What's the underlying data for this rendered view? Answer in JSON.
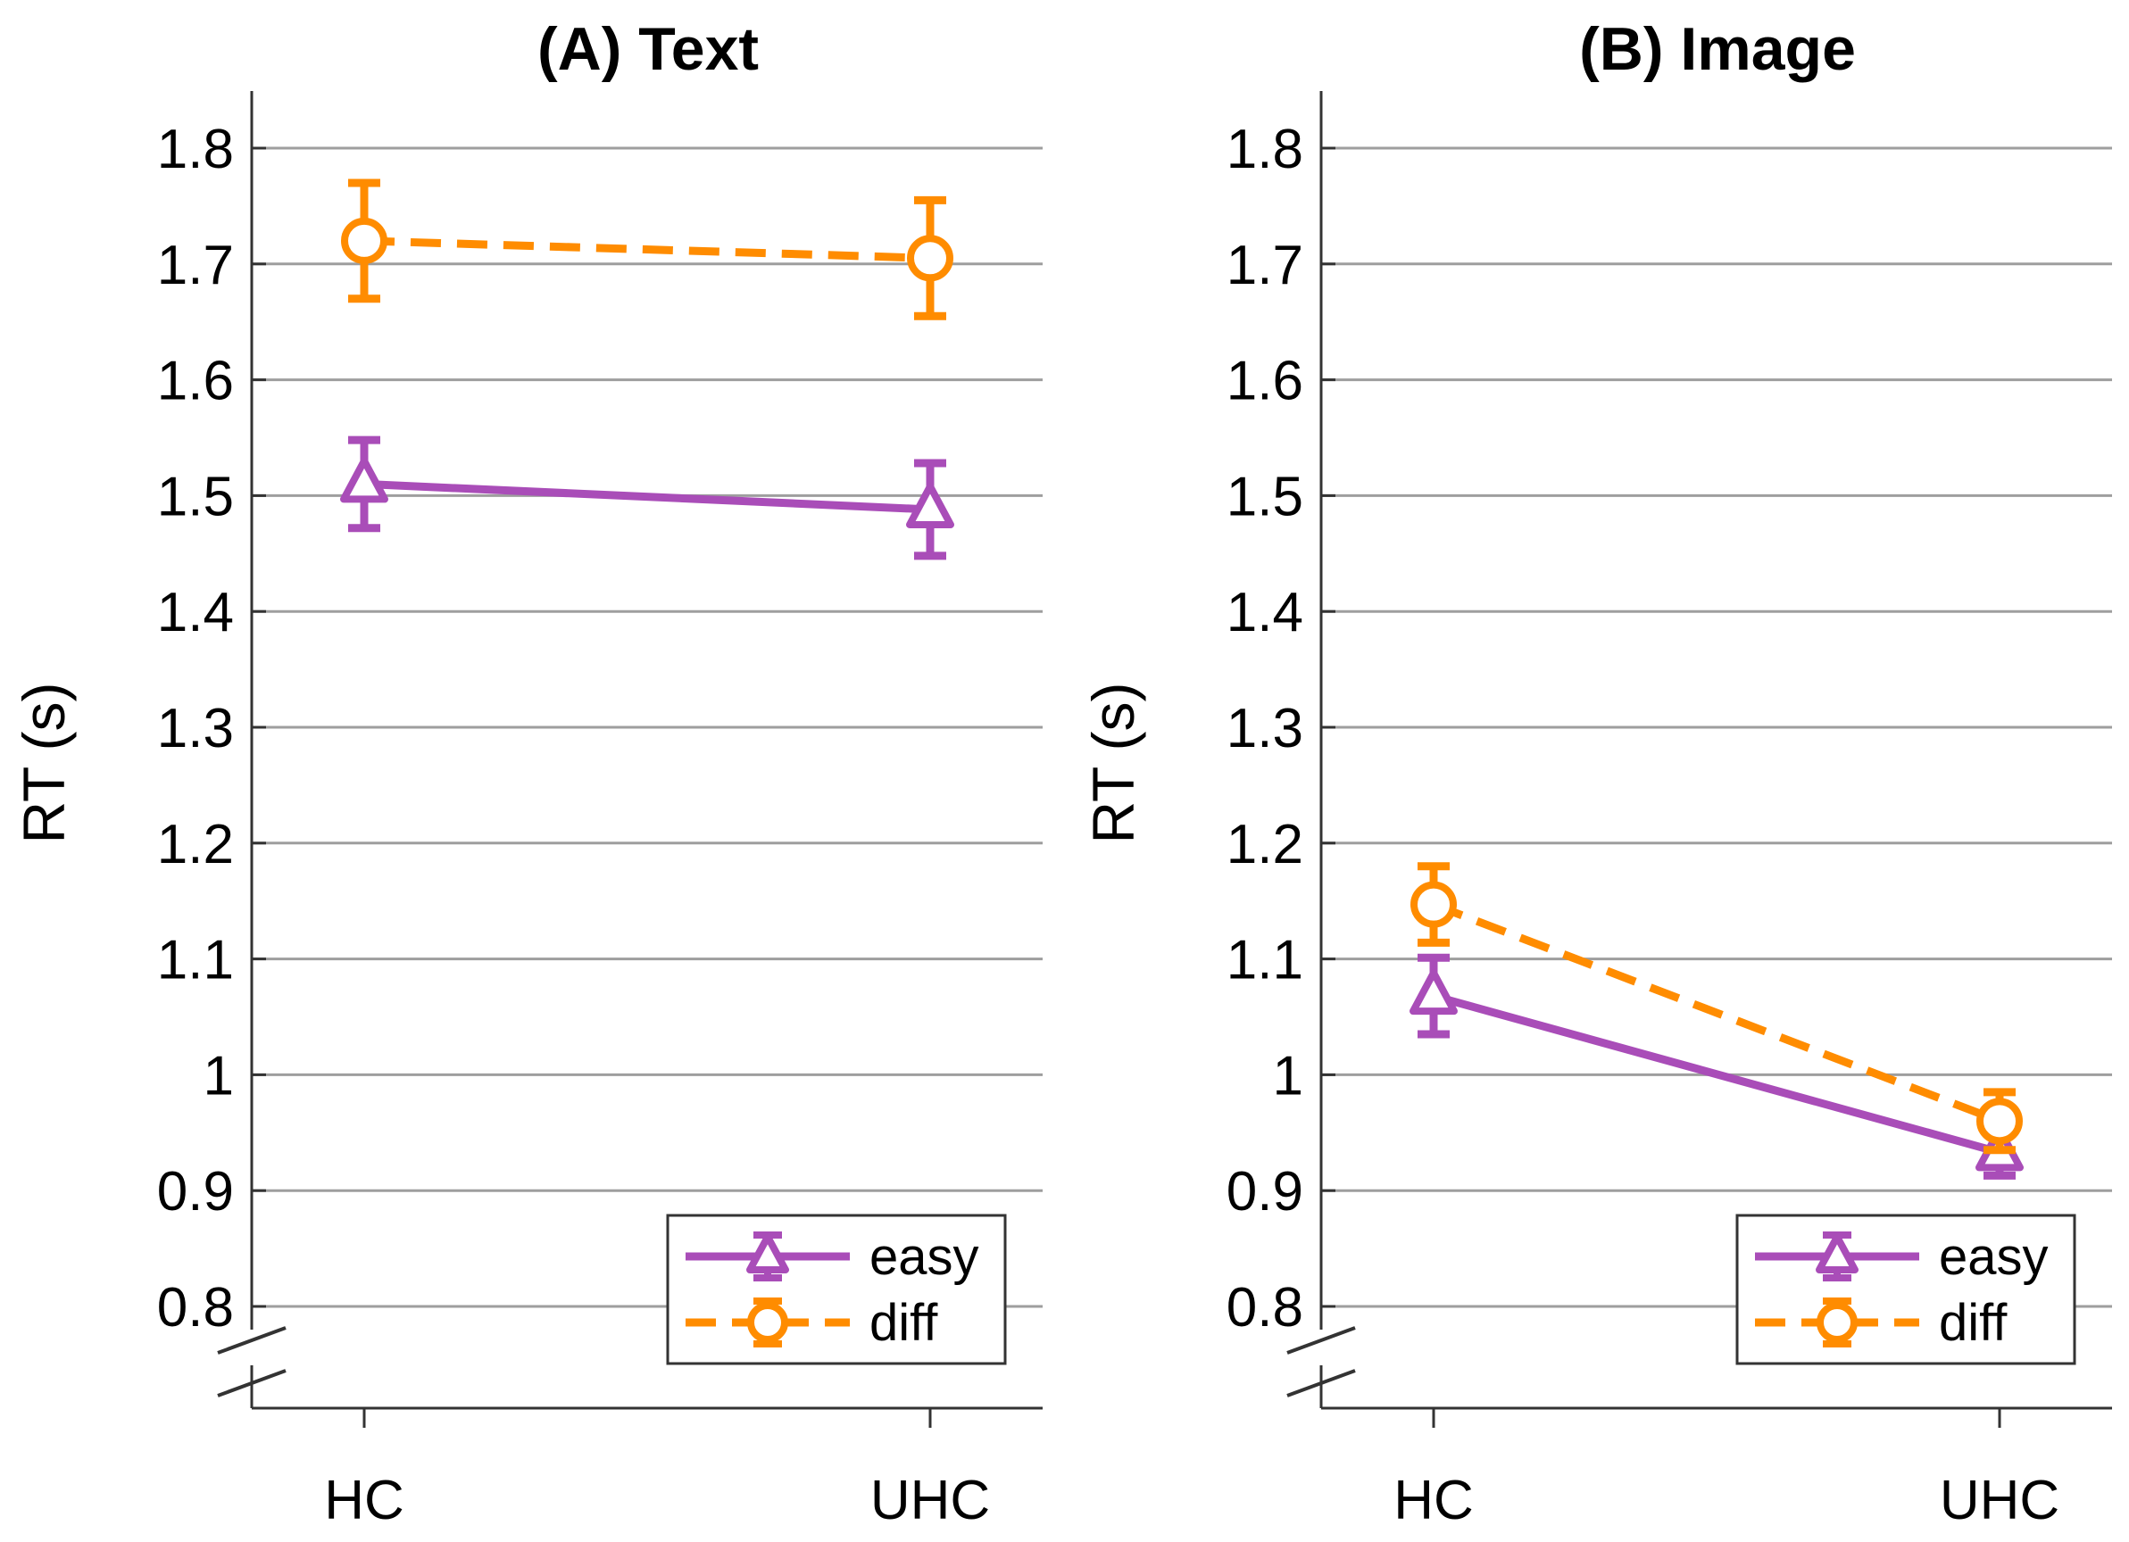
{
  "chart_data": [
    {
      "type": "line",
      "title": "(A) Text",
      "xlabel": "",
      "ylabel": "RT (s)",
      "categories": [
        "HC",
        "UHC"
      ],
      "ylim": [
        0.8,
        1.8
      ],
      "yticks": [
        "0.8",
        "0.9",
        "1",
        "1.1",
        "1.2",
        "1.3",
        "1.4",
        "1.5",
        "1.6",
        "1.7",
        "1.8"
      ],
      "grid": true,
      "axis_break": true,
      "legend_position": "bottom-right",
      "series": [
        {
          "name": "easy",
          "color": "#A94DB8",
          "dash": "solid",
          "marker": "triangle",
          "values": [
            1.51,
            1.488
          ],
          "errors": [
            0.038,
            0.04
          ]
        },
        {
          "name": "diff",
          "color": "#FF8C00",
          "dash": "dashed",
          "marker": "circle",
          "values": [
            1.72,
            1.705
          ],
          "errors": [
            0.05,
            0.05
          ]
        }
      ]
    },
    {
      "type": "line",
      "title": "(B) Image",
      "xlabel": "",
      "ylabel": "RT (s)",
      "categories": [
        "HC",
        "UHC"
      ],
      "ylim": [
        0.8,
        1.8
      ],
      "yticks": [
        "0.8",
        "0.9",
        "1",
        "1.1",
        "1.2",
        "1.3",
        "1.4",
        "1.5",
        "1.6",
        "1.7",
        "1.8"
      ],
      "grid": true,
      "axis_break": true,
      "legend_position": "bottom-right",
      "series": [
        {
          "name": "easy",
          "color": "#A94DB8",
          "dash": "solid",
          "marker": "triangle",
          "values": [
            1.068,
            0.933
          ],
          "errors": [
            0.033,
            0.02
          ]
        },
        {
          "name": "diff",
          "color": "#FF8C00",
          "dash": "dashed",
          "marker": "circle",
          "values": [
            1.147,
            0.96
          ],
          "errors": [
            0.033,
            0.025
          ]
        }
      ]
    }
  ]
}
